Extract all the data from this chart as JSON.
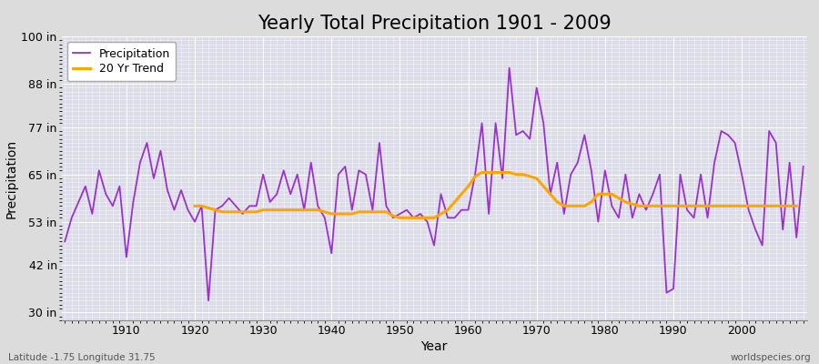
{
  "title": "Yearly Total Precipitation 1901 - 2009",
  "xlabel": "Year",
  "ylabel": "Precipitation",
  "subtitle_left": "Latitude -1.75 Longitude 31.75",
  "subtitle_right": "worldspecies.org",
  "years": [
    1901,
    1902,
    1903,
    1904,
    1905,
    1906,
    1907,
    1908,
    1909,
    1910,
    1911,
    1912,
    1913,
    1914,
    1915,
    1916,
    1917,
    1918,
    1919,
    1920,
    1921,
    1922,
    1923,
    1924,
    1925,
    1926,
    1927,
    1928,
    1929,
    1930,
    1931,
    1932,
    1933,
    1934,
    1935,
    1936,
    1937,
    1938,
    1939,
    1940,
    1941,
    1942,
    1943,
    1944,
    1945,
    1946,
    1947,
    1948,
    1949,
    1950,
    1951,
    1952,
    1953,
    1954,
    1955,
    1956,
    1957,
    1958,
    1959,
    1960,
    1961,
    1962,
    1963,
    1964,
    1965,
    1966,
    1967,
    1968,
    1969,
    1970,
    1971,
    1972,
    1973,
    1974,
    1975,
    1976,
    1977,
    1978,
    1979,
    1980,
    1981,
    1982,
    1983,
    1984,
    1985,
    1986,
    1987,
    1988,
    1989,
    1990,
    1991,
    1992,
    1993,
    1994,
    1995,
    1996,
    1997,
    1998,
    1999,
    2000,
    2001,
    2002,
    2003,
    2004,
    2005,
    2006,
    2007,
    2008,
    2009
  ],
  "precip": [
    48,
    54,
    58,
    62,
    55,
    66,
    60,
    57,
    62,
    44,
    58,
    68,
    73,
    64,
    71,
    61,
    56,
    61,
    56,
    53,
    57,
    33,
    56,
    57,
    59,
    57,
    55,
    57,
    57,
    65,
    58,
    60,
    66,
    60,
    65,
    56,
    68,
    57,
    54,
    45,
    65,
    67,
    56,
    66,
    65,
    56,
    73,
    57,
    54,
    55,
    56,
    54,
    55,
    53,
    47,
    60,
    54,
    54,
    56,
    56,
    65,
    78,
    55,
    78,
    64,
    92,
    75,
    76,
    74,
    87,
    78,
    60,
    68,
    55,
    65,
    68,
    75,
    66,
    53,
    66,
    57,
    54,
    65,
    54,
    60,
    56,
    60,
    65,
    35,
    36,
    65,
    56,
    54,
    65,
    54,
    68,
    76,
    75,
    73,
    65,
    56,
    51,
    47,
    76,
    73,
    51,
    68,
    49,
    67
  ],
  "trend": [
    null,
    null,
    null,
    null,
    null,
    null,
    null,
    null,
    null,
    null,
    null,
    null,
    null,
    null,
    null,
    null,
    null,
    null,
    null,
    57.0,
    57.0,
    56.5,
    56.0,
    55.5,
    55.5,
    55.5,
    55.5,
    55.5,
    55.5,
    56.0,
    56.0,
    56.0,
    56.0,
    56.0,
    56.0,
    56.0,
    56.0,
    56.0,
    55.5,
    55.0,
    55.0,
    55.0,
    55.0,
    55.5,
    55.5,
    55.5,
    55.5,
    55.5,
    54.5,
    54.0,
    54.0,
    54.0,
    54.0,
    54.0,
    54.0,
    55.0,
    56.0,
    58.0,
    60.0,
    62.0,
    64.5,
    65.5,
    65.5,
    65.5,
    65.5,
    65.5,
    65.0,
    65.0,
    64.5,
    64.0,
    62.0,
    60.0,
    58.0,
    57.0,
    57.0,
    57.0,
    57.0,
    58.0,
    60.0,
    60.0,
    60.0,
    59.0,
    58.0,
    57.5,
    57.0,
    57.0,
    57.0,
    57.0,
    57.0,
    57.0,
    57.0,
    57.0,
    57.0,
    57.0,
    57.0,
    57.0,
    57.0,
    57.0,
    57.0,
    57.0,
    57.0,
    57.0,
    57.0,
    57.0,
    57.0,
    57.0,
    57.0,
    57.0
  ],
  "ylim": [
    28,
    100
  ],
  "yticks": [
    30,
    42,
    53,
    65,
    77,
    88,
    100
  ],
  "ytick_labels": [
    "30 in",
    "42 in",
    "53 in",
    "65 in",
    "77 in",
    "88 in",
    "100 in"
  ],
  "xticks": [
    1910,
    1920,
    1930,
    1940,
    1950,
    1960,
    1970,
    1980,
    1990,
    2000
  ],
  "precip_color": "#9932CC",
  "trend_color": "#FFA500",
  "bg_color": "#dcdcdc",
  "plot_bg_color": "#dcdce8",
  "grid_color": "#ffffff",
  "title_fontsize": 15,
  "axis_label_fontsize": 10,
  "tick_fontsize": 9,
  "legend_fontsize": 9
}
